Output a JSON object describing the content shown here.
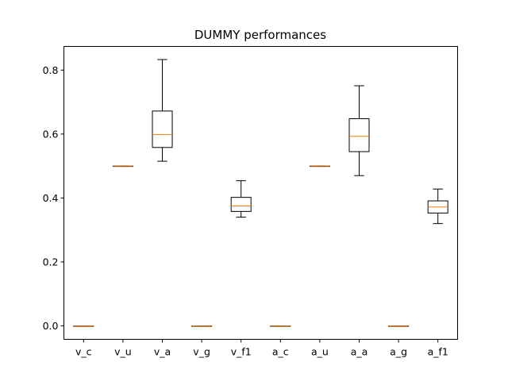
{
  "chart_data": {
    "type": "box",
    "title": "DUMMY performances",
    "xlabel": "",
    "ylabel": "",
    "ylim": [
      -0.042,
      0.874
    ],
    "yticks": [
      0.0,
      0.2,
      0.4,
      0.6,
      0.8
    ],
    "ytick_labels": [
      "0.0",
      "0.2",
      "0.4",
      "0.6",
      "0.8"
    ],
    "grid": false,
    "legend": "none",
    "colors": {
      "box": "#000000",
      "median": "#ff7f0e",
      "background": "#ffffff"
    },
    "categories": [
      "v_c",
      "v_u",
      "v_a",
      "v_g",
      "v_f1",
      "a_c",
      "a_u",
      "a_a",
      "a_g",
      "a_f1"
    ],
    "boxes": [
      {
        "label": "v_c",
        "whislo": 0.0,
        "q1": 0.0,
        "med": 0.0,
        "q3": 0.0,
        "whishi": 0.0
      },
      {
        "label": "v_u",
        "whislo": 0.5,
        "q1": 0.5,
        "med": 0.5,
        "q3": 0.5,
        "whishi": 0.5
      },
      {
        "label": "v_a",
        "whislo": 0.515,
        "q1": 0.558,
        "med": 0.598,
        "q3": 0.672,
        "whishi": 0.833
      },
      {
        "label": "v_g",
        "whislo": 0.0,
        "q1": 0.0,
        "med": 0.0,
        "q3": 0.0,
        "whishi": 0.0
      },
      {
        "label": "v_f1",
        "whislo": 0.34,
        "q1": 0.358,
        "med": 0.375,
        "q3": 0.402,
        "whishi": 0.454
      },
      {
        "label": "a_c",
        "whislo": 0.0,
        "q1": 0.0,
        "med": 0.0,
        "q3": 0.0,
        "whishi": 0.0
      },
      {
        "label": "a_u",
        "whislo": 0.5,
        "q1": 0.5,
        "med": 0.5,
        "q3": 0.5,
        "whishi": 0.5
      },
      {
        "label": "a_a",
        "whislo": 0.47,
        "q1": 0.545,
        "med": 0.593,
        "q3": 0.648,
        "whishi": 0.751
      },
      {
        "label": "a_g",
        "whislo": 0.0,
        "q1": 0.0,
        "med": 0.0,
        "q3": 0.0,
        "whishi": 0.0
      },
      {
        "label": "a_f1",
        "whislo": 0.32,
        "q1": 0.353,
        "med": 0.372,
        "q3": 0.391,
        "whishi": 0.428
      }
    ]
  }
}
